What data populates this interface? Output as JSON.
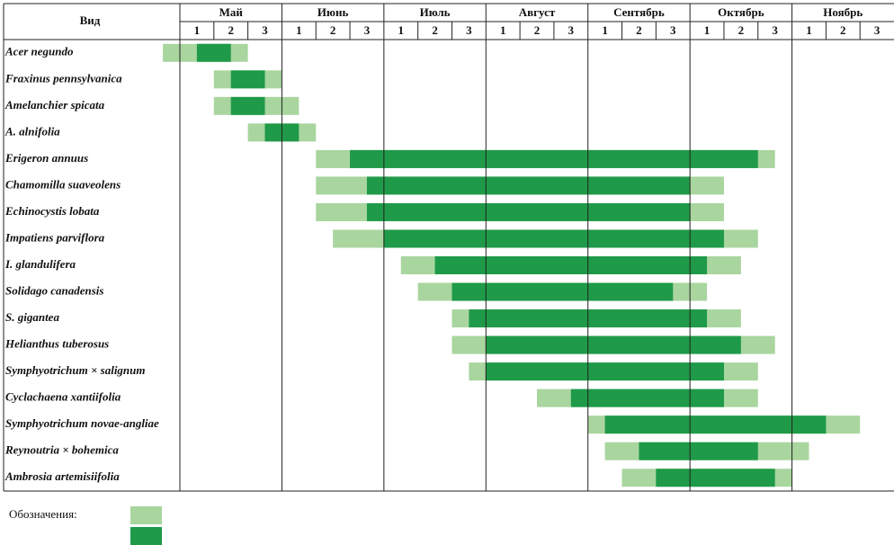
{
  "chart_data": {
    "type": "gantt",
    "row_header": "Вид",
    "months": [
      "Май",
      "Июнь",
      "Июль",
      "Август",
      "Сентябрь",
      "Октябрь",
      "Ноябрь"
    ],
    "decades": [
      1,
      2,
      3
    ],
    "xlim": [
      0,
      21
    ],
    "light_color": "#a9d59f",
    "dark_color": "#1f9a48",
    "legend_title": "Обозначения:",
    "rows": [
      {
        "name": "Acer negundo",
        "values": [
          -0.5,
          0.5,
          1.5,
          2
        ]
      },
      {
        "name": "Fraxinus pennsylvanica",
        "values": [
          1,
          1.5,
          2.5,
          3
        ]
      },
      {
        "name": "Amelanchier spicata",
        "values": [
          1,
          1.5,
          2.5,
          3.5
        ]
      },
      {
        "name": "A. alnifolia",
        "values": [
          2,
          2.5,
          3.5,
          4
        ]
      },
      {
        "name": "Erigeron annuus",
        "values": [
          4,
          5,
          17,
          17.5
        ]
      },
      {
        "name": "Chamomilla suaveolens",
        "values": [
          4,
          5.5,
          15,
          16
        ]
      },
      {
        "name": "Echinocystis lobata",
        "values": [
          4,
          5.5,
          15,
          16
        ]
      },
      {
        "name": "Impatiens parviflora",
        "values": [
          4.5,
          6,
          16,
          17
        ]
      },
      {
        "name": "I. glandulifera",
        "values": [
          6.5,
          7.5,
          15.5,
          16.5
        ]
      },
      {
        "name": "Solidago canadensis",
        "values": [
          7,
          8,
          14.5,
          15.5
        ]
      },
      {
        "name": "S. gigantea",
        "values": [
          8,
          8.5,
          15.5,
          16.5
        ]
      },
      {
        "name": "Helianthus tuberosus",
        "values": [
          8,
          9,
          16.5,
          17.5
        ]
      },
      {
        "name": "Symphyotrichum × salignum",
        "values": [
          8.5,
          9,
          16,
          17
        ]
      },
      {
        "name": "Cyclachaena xantiifolia",
        "values": [
          10.5,
          11.5,
          16,
          17
        ]
      },
      {
        "name": "Symphyotrichum novae-angliae",
        "values": [
          12,
          12.5,
          19,
          20
        ]
      },
      {
        "name": "Reynoutria × bohemica",
        "values": [
          12.5,
          13.5,
          17,
          18.5
        ]
      },
      {
        "name": "Ambrosia artemisiifolia",
        "values": [
          13,
          14,
          17.5,
          18
        ]
      }
    ]
  }
}
